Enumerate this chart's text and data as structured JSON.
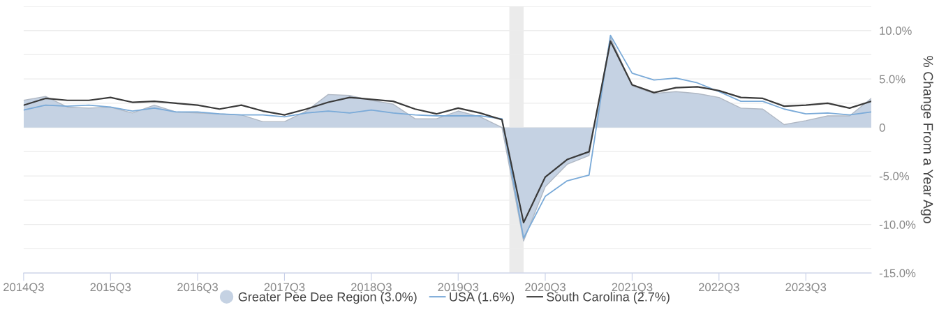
{
  "chart_data": {
    "type": "line",
    "ylabel": "% Change From a Year Ago",
    "x": [
      "2014-07",
      "2014-10",
      "2015-01",
      "2015-04",
      "2015-07",
      "2015-10",
      "2016-01",
      "2016-04",
      "2016-07",
      "2016-10",
      "2017-01",
      "2017-04",
      "2017-07",
      "2017-10",
      "2018-01",
      "2018-04",
      "2018-07",
      "2018-10",
      "2019-01",
      "2019-04",
      "2019-07",
      "2019-10",
      "2020-01",
      "2020-04",
      "2020-07",
      "2020-10",
      "2021-01",
      "2021-04",
      "2021-07",
      "2021-10",
      "2022-01",
      "2022-04",
      "2022-07",
      "2022-10",
      "2023-01",
      "2023-04",
      "2023-07",
      "2023-10",
      "2024-01",
      "2024-04"
    ],
    "series": [
      {
        "name": "Greater Pee Dee Region (3.0%)",
        "type": "area",
        "color": "#c5d2e3",
        "values": [
          2.8,
          3.2,
          2.1,
          2.0,
          2.1,
          1.5,
          2.3,
          1.6,
          1.5,
          1.4,
          1.3,
          0.6,
          0.6,
          1.7,
          3.4,
          3.3,
          2.8,
          2.4,
          0.9,
          0.9,
          1.7,
          1.1,
          0.0,
          -11.7,
          -6.1,
          -3.8,
          -2.9,
          9.3,
          4.3,
          3.5,
          3.7,
          3.5,
          3.1,
          2.0,
          1.9,
          0.3,
          0.7,
          1.2,
          1.2,
          3.0
        ]
      },
      {
        "name": "USA (1.6%)",
        "color": "#7aaad8",
        "values": [
          1.8,
          2.3,
          2.2,
          2.3,
          2.1,
          1.7,
          2.0,
          1.6,
          1.6,
          1.4,
          1.3,
          1.3,
          1.1,
          1.5,
          1.7,
          1.5,
          1.8,
          1.5,
          1.3,
          1.2,
          1.2,
          1.2,
          0.9,
          -11.4,
          -7.1,
          -5.5,
          -4.9,
          9.5,
          5.6,
          4.9,
          5.1,
          4.6,
          3.7,
          2.7,
          2.7,
          1.9,
          1.4,
          1.5,
          1.3,
          1.6
        ]
      },
      {
        "name": "South Carolina (2.7%)",
        "color": "#3a3a3a",
        "values": [
          2.3,
          3.0,
          2.8,
          2.8,
          3.1,
          2.6,
          2.7,
          2.5,
          2.3,
          1.9,
          2.3,
          1.7,
          1.3,
          1.9,
          2.6,
          3.1,
          2.9,
          2.7,
          1.9,
          1.4,
          2.0,
          1.5,
          0.8,
          -9.8,
          -5.1,
          -3.3,
          -2.5,
          8.9,
          4.4,
          3.6,
          4.1,
          4.2,
          3.8,
          3.1,
          3.0,
          2.2,
          2.3,
          2.5,
          2.0,
          2.7
        ]
      }
    ],
    "xlim": [
      "2014-07",
      "2024-04"
    ],
    "xticks": [
      {
        "value": "2014-07",
        "label": "2014Q3"
      },
      {
        "value": "2015-07",
        "label": "2015Q3"
      },
      {
        "value": "2016-07",
        "label": "2016Q3"
      },
      {
        "value": "2017-07",
        "label": "2017Q3"
      },
      {
        "value": "2018-07",
        "label": "2018Q3"
      },
      {
        "value": "2019-07",
        "label": "2019Q3"
      },
      {
        "value": "2020-07",
        "label": "2020Q3"
      },
      {
        "value": "2021-07",
        "label": "2021Q3"
      },
      {
        "value": "2022-07",
        "label": "2022Q3"
      },
      {
        "value": "2023-07",
        "label": "2023Q3"
      }
    ],
    "ylim": [
      -15,
      12.5
    ],
    "yticks": [
      {
        "value": -15,
        "label": "-15.0%"
      },
      {
        "value": -12.5,
        "label": null
      },
      {
        "value": -10,
        "label": "-10.0%"
      },
      {
        "value": -7.5,
        "label": null
      },
      {
        "value": -5,
        "label": "-5.0%"
      },
      {
        "value": -2.5,
        "label": null
      },
      {
        "value": 0,
        "label": "0"
      },
      {
        "value": 2.5,
        "label": null
      },
      {
        "value": 5,
        "label": "5.0%"
      },
      {
        "value": 7.5,
        "label": null
      },
      {
        "value": 10,
        "label": "10.0%"
      },
      {
        "value": 12.5,
        "label": null
      }
    ],
    "bands": [
      {
        "axis": "x",
        "from": "2020-02",
        "to": "2020-04",
        "color": "#ebebeb"
      }
    ],
    "grid": "y",
    "legend": "bottom"
  }
}
